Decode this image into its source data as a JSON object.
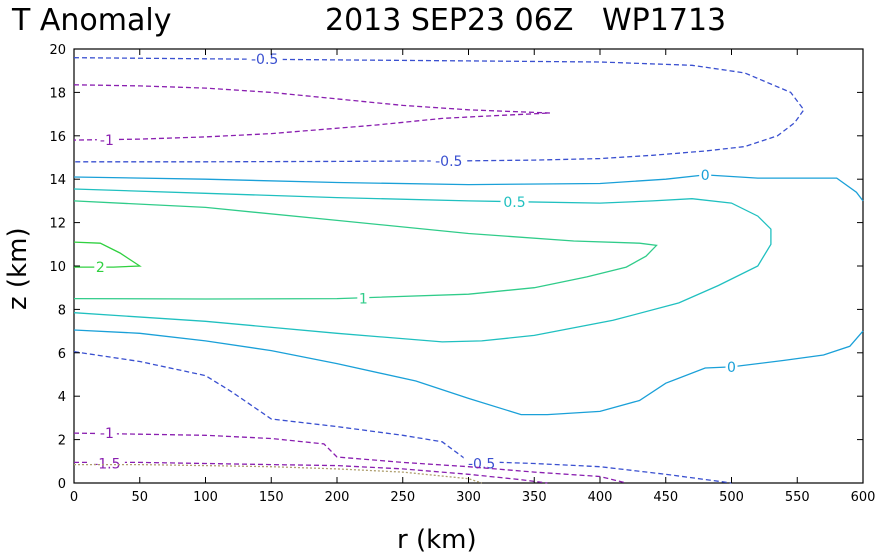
{
  "chart_data": {
    "type": "line",
    "subtype": "contour",
    "title_left": "T Anomaly",
    "title_right": "2013 SEP23 06Z   WP1713",
    "xlabel": "r (km)",
    "ylabel": "z (km)",
    "xlim": [
      0,
      600
    ],
    "ylim": [
      0,
      20
    ],
    "x_ticks": [
      0,
      50,
      100,
      150,
      200,
      250,
      300,
      350,
      400,
      450,
      500,
      550,
      600
    ],
    "y_ticks": [
      0,
      2,
      4,
      6,
      8,
      10,
      12,
      14,
      16,
      18,
      20
    ],
    "x_tick_labels": [
      "0",
      "50",
      "100",
      "150",
      "200",
      "250",
      "300",
      "350",
      "400",
      "450",
      "500",
      "550",
      "600"
    ],
    "y_tick_labels": [
      "0",
      "2",
      "4",
      "6",
      "8",
      "10",
      "12",
      "14",
      "16",
      "18",
      "20"
    ],
    "series": [
      {
        "name": "-0.5 upper",
        "level": "-0.5",
        "color": "#3a50d0",
        "dash": "dashed",
        "points": [
          [
            0,
            19.6
          ],
          [
            100,
            19.55
          ],
          [
            200,
            19.5
          ],
          [
            300,
            19.45
          ],
          [
            400,
            19.4
          ],
          [
            470,
            19.25
          ],
          [
            510,
            18.9
          ],
          [
            545,
            18.0
          ],
          [
            555,
            17.2
          ],
          [
            548,
            16.6
          ],
          [
            535,
            16.0
          ],
          [
            510,
            15.5
          ],
          [
            480,
            15.3
          ],
          [
            440,
            15.1
          ],
          [
            400,
            14.95
          ],
          [
            350,
            14.88
          ],
          [
            300,
            14.85
          ],
          [
            200,
            14.82
          ],
          [
            100,
            14.8
          ],
          [
            0,
            14.8
          ]
        ],
        "label_at": [
          [
            145,
            19.55,
            "-0.5"
          ],
          [
            285,
            14.85,
            "-0.5"
          ]
        ]
      },
      {
        "name": "-1 upper",
        "level": "-1",
        "color": "#8a1fb0",
        "dash": "dashed",
        "points": [
          [
            0,
            18.35
          ],
          [
            50,
            18.3
          ],
          [
            100,
            18.2
          ],
          [
            150,
            18.0
          ],
          [
            200,
            17.7
          ],
          [
            250,
            17.4
          ],
          [
            300,
            17.2
          ],
          [
            340,
            17.1
          ],
          [
            362,
            17.05
          ],
          [
            345,
            17.0
          ],
          [
            310,
            16.9
          ],
          [
            280,
            16.8
          ],
          [
            230,
            16.5
          ],
          [
            150,
            16.1
          ],
          [
            100,
            15.95
          ],
          [
            50,
            15.85
          ],
          [
            0,
            15.8
          ]
        ],
        "label_at": [
          [
            25,
            15.8,
            "-1"
          ]
        ]
      },
      {
        "name": "0 contour",
        "level": "0",
        "color": "#1aa0d8",
        "dash": "solid",
        "points": [
          [
            0,
            14.1
          ],
          [
            100,
            14.0
          ],
          [
            200,
            13.85
          ],
          [
            300,
            13.75
          ],
          [
            400,
            13.8
          ],
          [
            450,
            14.0
          ],
          [
            480,
            14.2
          ],
          [
            520,
            14.05
          ],
          [
            565,
            14.05
          ],
          [
            580,
            14.05
          ],
          [
            595,
            13.4
          ],
          [
            600,
            13.0
          ]
        ],
        "label_at": [
          [
            480,
            14.2,
            "0"
          ]
        ]
      },
      {
        "name": "0 contour lower",
        "level": "0",
        "color": "#1aa0d8",
        "dash": "solid",
        "points": [
          [
            0,
            7.05
          ],
          [
            50,
            6.9
          ],
          [
            100,
            6.55
          ],
          [
            150,
            6.1
          ],
          [
            200,
            5.5
          ],
          [
            260,
            4.7
          ],
          [
            300,
            3.9
          ],
          [
            340,
            3.15
          ],
          [
            360,
            3.15
          ],
          [
            400,
            3.3
          ],
          [
            430,
            3.8
          ],
          [
            450,
            4.6
          ],
          [
            480,
            5.3
          ],
          [
            500,
            5.35
          ],
          [
            540,
            5.65
          ],
          [
            570,
            5.9
          ],
          [
            590,
            6.3
          ],
          [
            600,
            7.0
          ]
        ],
        "label_at": [
          [
            500,
            5.35,
            "0"
          ]
        ]
      },
      {
        "name": "0.5 contour",
        "level": "0.5",
        "color": "#20c0c0",
        "dash": "solid",
        "points": [
          [
            0,
            13.55
          ],
          [
            100,
            13.35
          ],
          [
            200,
            13.15
          ],
          [
            300,
            13.0
          ],
          [
            400,
            12.9
          ],
          [
            440,
            13.0
          ],
          [
            470,
            13.1
          ],
          [
            500,
            12.9
          ],
          [
            520,
            12.3
          ],
          [
            530,
            11.7
          ],
          [
            530,
            11.0
          ],
          [
            520,
            10.0
          ],
          [
            490,
            9.1
          ],
          [
            460,
            8.3
          ],
          [
            410,
            7.5
          ],
          [
            350,
            6.8
          ],
          [
            310,
            6.55
          ],
          [
            280,
            6.5
          ],
          [
            200,
            6.9
          ],
          [
            100,
            7.45
          ],
          [
            0,
            7.85
          ]
        ],
        "label_at": [
          [
            335,
            12.95,
            "0.5"
          ]
        ]
      },
      {
        "name": "1 contour",
        "level": "1",
        "color": "#30cc8a",
        "dash": "solid",
        "points": [
          [
            0,
            13.0
          ],
          [
            100,
            12.7
          ],
          [
            200,
            12.1
          ],
          [
            300,
            11.5
          ],
          [
            380,
            11.15
          ],
          [
            430,
            11.05
          ],
          [
            443,
            10.95
          ],
          [
            435,
            10.45
          ],
          [
            420,
            9.95
          ],
          [
            390,
            9.5
          ],
          [
            350,
            9.0
          ],
          [
            300,
            8.7
          ],
          [
            200,
            8.5
          ],
          [
            100,
            8.48
          ],
          [
            0,
            8.5
          ]
        ],
        "label_at": [
          [
            220,
            8.5,
            "1"
          ]
        ]
      },
      {
        "name": "2 contour",
        "level": "2",
        "color": "#30d040",
        "dash": "solid",
        "points": [
          [
            0,
            11.1
          ],
          [
            20,
            11.05
          ],
          [
            35,
            10.6
          ],
          [
            50,
            10.0
          ],
          [
            30,
            9.95
          ],
          [
            0,
            9.95
          ]
        ],
        "label_at": [
          [
            20,
            9.95,
            "2"
          ]
        ]
      },
      {
        "name": "-0.5 lower",
        "level": "-0.5",
        "color": "#3a50d0",
        "dash": "dashed",
        "points": [
          [
            0,
            6.05
          ],
          [
            50,
            5.6
          ],
          [
            100,
            4.95
          ],
          [
            120,
            4.2
          ],
          [
            150,
            2.95
          ],
          [
            200,
            2.6
          ],
          [
            250,
            2.2
          ],
          [
            280,
            1.9
          ],
          [
            300,
            1.0
          ],
          [
            350,
            0.9
          ],
          [
            400,
            0.75
          ],
          [
            450,
            0.4
          ],
          [
            500,
            0.0
          ]
        ],
        "label_at": [
          [
            310,
            0.9,
            "-0.5"
          ]
        ]
      },
      {
        "name": "-1 lower",
        "level": "-1",
        "color": "#8a1fb0",
        "dash": "dashed",
        "points": [
          [
            0,
            2.3
          ],
          [
            50,
            2.25
          ],
          [
            100,
            2.2
          ],
          [
            150,
            2.05
          ],
          [
            190,
            1.8
          ],
          [
            200,
            1.2
          ],
          [
            250,
            0.95
          ],
          [
            300,
            0.75
          ],
          [
            350,
            0.5
          ],
          [
            400,
            0.3
          ],
          [
            420,
            0.0
          ]
        ],
        "label_at": [
          [
            25,
            2.3,
            "-1"
          ]
        ]
      },
      {
        "name": "-1.5 lower",
        "level": "-1.5",
        "color": "#8a1fb0",
        "dash": "dashed",
        "points": [
          [
            0,
            0.95
          ],
          [
            50,
            0.95
          ],
          [
            100,
            0.9
          ],
          [
            150,
            0.85
          ],
          [
            200,
            0.8
          ],
          [
            250,
            0.65
          ],
          [
            300,
            0.4
          ],
          [
            340,
            0.15
          ],
          [
            360,
            0.0
          ]
        ],
        "label_at": [
          [
            25,
            0.9,
            "-1.5"
          ]
        ]
      },
      {
        "name": "-2 lower",
        "level": "-2",
        "color": "#b0a070",
        "dash": "dotted",
        "points": [
          [
            0,
            0.85
          ],
          [
            50,
            0.85
          ],
          [
            100,
            0.8
          ],
          [
            150,
            0.75
          ],
          [
            200,
            0.65
          ],
          [
            250,
            0.5
          ],
          [
            300,
            0.2
          ],
          [
            310,
            0.0
          ]
        ],
        "label_at": []
      }
    ]
  }
}
